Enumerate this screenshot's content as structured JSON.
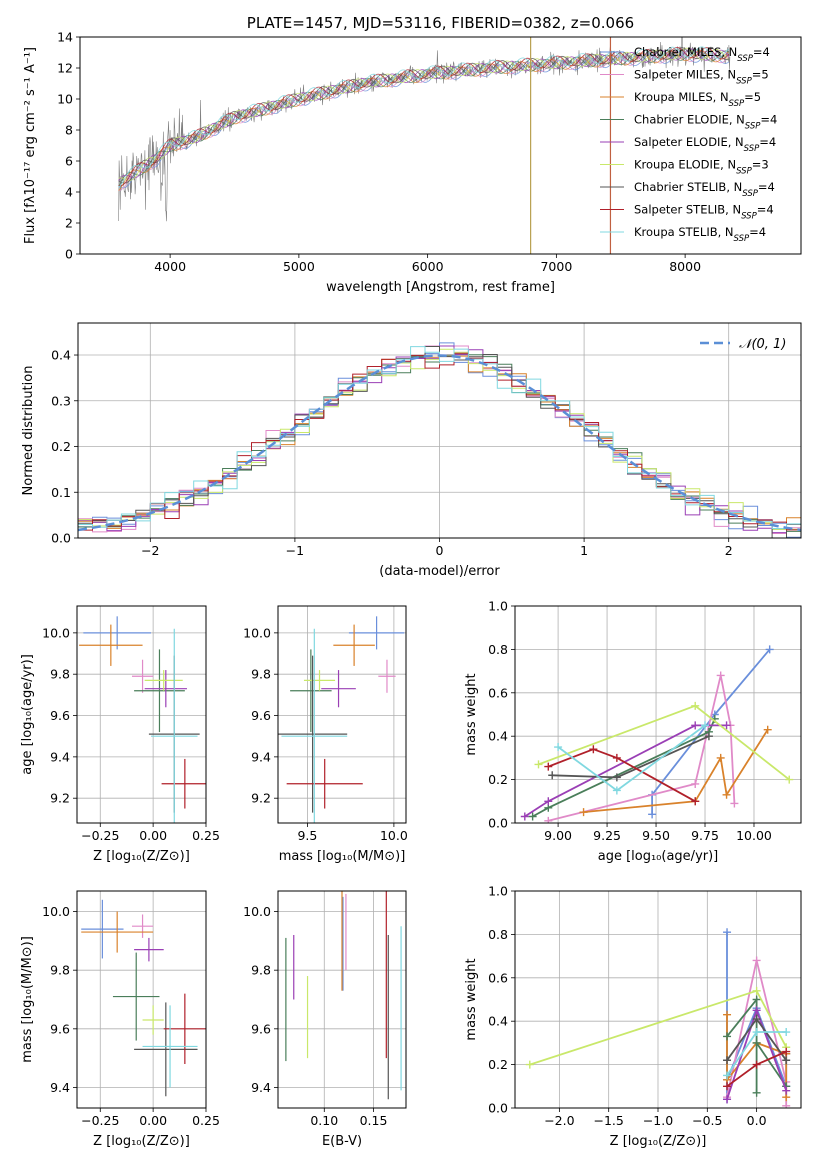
{
  "colors": {
    "c1": "#6a8fdb",
    "c2": "#e08ac8",
    "c3": "#d9822b",
    "c4": "#4a7e5a",
    "c5": "#9a3fb5",
    "c6": "#c9e86a",
    "c7": "#555555",
    "c8": "#b0202a",
    "c9": "#80d8e0",
    "grey": "#808080",
    "norm": "#5b8fd6"
  },
  "chart_data": [
    {
      "id": "spectrum",
      "type": "line",
      "title": "PLATE=1457, MJD=53116, FIBERID=0382, z=0.066",
      "xlabel": "wavelength [Angstrom, rest frame]",
      "ylabel": "Flux [fλ10⁻¹⁷ erg cm⁻² s⁻¹ A⁻¹]",
      "xlim": [
        3300,
        8900
      ],
      "ylim": [
        0,
        14
      ],
      "xticks": [
        "4000",
        "5000",
        "6000",
        "7000",
        "8000"
      ],
      "yticks": [
        "0",
        "2",
        "4",
        "6",
        "8",
        "10",
        "12",
        "14"
      ],
      "continuum": [
        [
          3600,
          4.5
        ],
        [
          3900,
          6.2
        ],
        [
          4000,
          7.0
        ],
        [
          4200,
          7.5
        ],
        [
          4500,
          8.8
        ],
        [
          5000,
          10.0
        ],
        [
          5500,
          11.0
        ],
        [
          6000,
          11.6
        ],
        [
          6500,
          12.0
        ],
        [
          7000,
          12.3
        ],
        [
          7500,
          12.6
        ],
        [
          8000,
          12.9
        ],
        [
          8300,
          12.8
        ]
      ],
      "legend": [
        {
          "model": "Chabrier MILES",
          "nssp": "4"
        },
        {
          "model": "Salpeter MILES",
          "nssp": "5"
        },
        {
          "model": "Kroupa MILES",
          "nssp": "5"
        },
        {
          "model": "Chabrier ELODIE",
          "nssp": "4"
        },
        {
          "model": "Salpeter ELODIE",
          "nssp": "4"
        },
        {
          "model": "Kroupa ELODIE",
          "nssp": "3"
        },
        {
          "model": "Chabrier STELIB",
          "nssp": "4"
        },
        {
          "model": "Salpeter STELIB",
          "nssp": "4"
        },
        {
          "model": "Kroupa STELIB",
          "nssp": "4"
        }
      ],
      "legend_placement": "top-right"
    },
    {
      "id": "residuals",
      "type": "line",
      "xlabel": "(data-model)/error",
      "ylabel": "Normed distribution",
      "xlim": [
        -2.5,
        2.5
      ],
      "ylim": [
        0,
        0.47
      ],
      "xticks": [
        "−2",
        "−1",
        "0",
        "1",
        "2"
      ],
      "yticks": [
        "0.0",
        "0.1",
        "0.2",
        "0.3",
        "0.4"
      ],
      "legend": "𝒩(0, 1)",
      "grid": true
    },
    {
      "id": "age-vs-Z",
      "type": "scatter",
      "xlabel": "Z [log₁₀(Z/Z⊙)]",
      "ylabel": "age  [log₁₀(age/yr)]",
      "xlim": [
        -0.36,
        0.25
      ],
      "ylim": [
        9.08,
        10.13
      ],
      "xticks": [
        "−0.25",
        "0.00",
        "0.25"
      ],
      "yticks": [
        "9.2",
        "9.4",
        "9.6",
        "9.8",
        "10.0"
      ],
      "points": [
        {
          "x": -0.17,
          "xerr": 0.16,
          "y": 10.0,
          "yerr": 0.08
        },
        {
          "x": -0.05,
          "xerr": 0.05,
          "y": 9.79,
          "yerr": 0.08
        },
        {
          "x": -0.2,
          "xerr": 0.15,
          "y": 9.94,
          "yerr": 0.1
        },
        {
          "x": 0.03,
          "xerr": 0.12,
          "y": 9.72,
          "yerr": 0.2
        },
        {
          "x": 0.06,
          "xerr": 0.1,
          "y": 9.73,
          "yerr": 0.09
        },
        {
          "x": 0.05,
          "xerr": 0.09,
          "y": 9.77,
          "yerr": 0.05
        },
        {
          "x": 0.1,
          "xerr": 0.12,
          "y": 9.51,
          "yerr": 0.38
        },
        {
          "x": 0.15,
          "xerr": 0.11,
          "y": 9.27,
          "yerr": 0.12
        },
        {
          "x": 0.1,
          "xerr": 0.11,
          "y": 9.5,
          "yerr": 0.52
        }
      ]
    },
    {
      "id": "age-vs-mass",
      "type": "scatter",
      "xlabel": "mass [log₁₀(M/M⊙)]",
      "ylabel": "",
      "xlim": [
        9.33,
        10.07
      ],
      "ylim": [
        9.08,
        10.13
      ],
      "xticks": [
        "9.5",
        "10.0"
      ],
      "yticks": [
        "9.2",
        "9.4",
        "9.6",
        "9.8",
        "10.0"
      ],
      "points": [
        {
          "x": 9.9,
          "xerr": 0.16,
          "y": 10.0,
          "yerr": 0.08
        },
        {
          "x": 9.96,
          "xerr": 0.05,
          "y": 9.79,
          "yerr": 0.08
        },
        {
          "x": 9.77,
          "xerr": 0.12,
          "y": 9.94,
          "yerr": 0.1
        },
        {
          "x": 9.52,
          "xerr": 0.12,
          "y": 9.72,
          "yerr": 0.2
        },
        {
          "x": 9.68,
          "xerr": 0.1,
          "y": 9.73,
          "yerr": 0.09
        },
        {
          "x": 9.57,
          "xerr": 0.09,
          "y": 9.77,
          "yerr": 0.05
        },
        {
          "x": 9.53,
          "xerr": 0.2,
          "y": 9.51,
          "yerr": 0.38
        },
        {
          "x": 9.6,
          "xerr": 0.22,
          "y": 9.27,
          "yerr": 0.12
        },
        {
          "x": 9.54,
          "xerr": 0.19,
          "y": 9.5,
          "yerr": 0.52
        }
      ]
    },
    {
      "id": "weight-vs-age",
      "type": "line",
      "xlabel": "age  [log₁₀(age/yr)]",
      "ylabel": "mass weight",
      "xlim": [
        8.78,
        10.24
      ],
      "ylim": [
        0,
        1
      ],
      "xticks": [
        "9.00",
        "9.25",
        "9.50",
        "9.75",
        "10.00"
      ],
      "yticks": [
        "0.0",
        "0.2",
        "0.4",
        "0.6",
        "0.8",
        "1.0"
      ],
      "grid": true,
      "series": [
        {
          "x": [
            9.48,
            9.48,
            9.8,
            10.08
          ],
          "y": [
            0.04,
            0.13,
            0.5,
            0.8
          ]
        },
        {
          "x": [
            8.95,
            9.7,
            9.83,
            9.88,
            9.9
          ],
          "y": [
            0.01,
            0.18,
            0.68,
            0.45,
            0.09
          ]
        },
        {
          "x": [
            9.13,
            9.7,
            9.83,
            9.86,
            10.07
          ],
          "y": [
            0.05,
            0.1,
            0.3,
            0.13,
            0.43
          ]
        },
        {
          "x": [
            8.87,
            8.95,
            9.77,
            9.8
          ],
          "y": [
            0.03,
            0.07,
            0.42,
            0.48
          ]
        },
        {
          "x": [
            8.83,
            8.95,
            9.7,
            9.86
          ],
          "y": [
            0.03,
            0.1,
            0.45,
            0.45
          ]
        },
        {
          "x": [
            8.9,
            9.7,
            10.18
          ],
          "y": [
            0.27,
            0.54,
            0.2
          ]
        },
        {
          "x": [
            8.97,
            9.3,
            9.77
          ],
          "y": [
            0.22,
            0.21,
            0.4
          ]
        },
        {
          "x": [
            8.95,
            9.18,
            9.3,
            9.7
          ],
          "y": [
            0.26,
            0.34,
            0.3,
            0.1
          ]
        },
        {
          "x": [
            9.0,
            9.3,
            9.75
          ],
          "y": [
            0.35,
            0.15,
            0.45
          ]
        }
      ]
    },
    {
      "id": "mass-vs-Z",
      "type": "scatter",
      "xlabel": "Z [log₁₀(Z/Z⊙)]",
      "ylabel": "mass [log₁₀(M/M⊙)]",
      "xlim": [
        -0.36,
        0.25
      ],
      "ylim": [
        9.33,
        10.07
      ],
      "xticks": [
        "−0.25",
        "0.00",
        "0.25"
      ],
      "yticks": [
        "9.4",
        "9.6",
        "9.8",
        "10.0"
      ],
      "points": [
        {
          "x": -0.24,
          "xerr": 0.1,
          "y": 9.94,
          "yerr": 0.1
        },
        {
          "x": -0.05,
          "xerr": 0.05,
          "y": 9.95,
          "yerr": 0.04
        },
        {
          "x": -0.17,
          "xerr": 0.17,
          "y": 9.93,
          "yerr": 0.07
        },
        {
          "x": -0.08,
          "xerr": 0.11,
          "y": 9.71,
          "yerr": 0.15
        },
        {
          "x": -0.02,
          "xerr": 0.07,
          "y": 9.87,
          "yerr": 0.04
        },
        {
          "x": 0.0,
          "xerr": 0.05,
          "y": 9.63,
          "yerr": 0.05
        },
        {
          "x": 0.06,
          "xerr": 0.15,
          "y": 9.53,
          "yerr": 0.16
        },
        {
          "x": 0.15,
          "xerr": 0.1,
          "y": 9.6,
          "yerr": 0.12
        },
        {
          "x": 0.08,
          "xerr": 0.13,
          "y": 9.54,
          "yerr": 0.14
        }
      ]
    },
    {
      "id": "mass-vs-ebv",
      "type": "scatter",
      "xlabel": "E(B-V)",
      "ylabel": "",
      "xlim": [
        0.053,
        0.183
      ],
      "ylim": [
        9.33,
        10.07
      ],
      "xticks": [
        "0.10",
        "0.15"
      ],
      "yticks": [
        "9.4",
        "9.6",
        "9.8",
        "10.0"
      ],
      "points": [
        {
          "x": 0.119,
          "y": 9.89,
          "yerr": 0.16
        },
        {
          "x": 0.122,
          "y": 9.93,
          "yerr": 0.13
        },
        {
          "x": 0.118,
          "y": 9.91,
          "yerr": 0.18
        },
        {
          "x": 0.061,
          "y": 9.7,
          "yerr": 0.21
        },
        {
          "x": 0.069,
          "y": 9.81,
          "yerr": 0.11
        },
        {
          "x": 0.083,
          "y": 9.64,
          "yerr": 0.14
        },
        {
          "x": 0.165,
          "y": 9.64,
          "yerr": 0.28
        },
        {
          "x": 0.163,
          "y": 9.79,
          "yerr": 0.29
        },
        {
          "x": 0.178,
          "y": 9.67,
          "yerr": 0.28
        }
      ]
    },
    {
      "id": "weight-vs-Z",
      "type": "line",
      "xlabel": "Z [log₁₀(Z/Z⊙)]",
      "ylabel": "mass weight",
      "xlim": [
        -2.45,
        0.45
      ],
      "ylim": [
        0,
        1
      ],
      "xticks": [
        "−2.0",
        "−1.5",
        "−1.0",
        "−0.5",
        "0.0"
      ],
      "yticks": [
        "0.0",
        "0.2",
        "0.4",
        "0.6",
        "0.8",
        "1.0"
      ],
      "grid": true,
      "series": [
        {
          "x": [
            -0.3,
            -0.3,
            -0.3,
            0.0,
            0.3,
            0.3
          ],
          "y": [
            0.81,
            0.04,
            0.13,
            0.46,
            0.1,
            0.25
          ]
        },
        {
          "x": [
            -0.3,
            0.0,
            0.3,
            0.3
          ],
          "y": [
            0.05,
            0.68,
            0.12,
            0.01
          ]
        },
        {
          "x": [
            -0.3,
            -0.3,
            0.0,
            0.3,
            0.3
          ],
          "y": [
            0.43,
            0.13,
            0.3,
            0.25,
            0.05
          ]
        },
        {
          "x": [
            -0.3,
            0.0,
            0.0,
            0.0,
            0.3
          ],
          "y": [
            0.33,
            0.5,
            0.07,
            0.3,
            0.1
          ]
        },
        {
          "x": [
            -0.3,
            0.0,
            0.3
          ],
          "y": [
            0.04,
            0.45,
            0.08
          ]
        },
        {
          "x": [
            -2.3,
            0.0,
            0.3
          ],
          "y": [
            0.2,
            0.54,
            0.28
          ]
        },
        {
          "x": [
            -0.3,
            0.0,
            0.3
          ],
          "y": [
            0.22,
            0.41,
            0.22
          ]
        },
        {
          "x": [
            -0.3,
            0.0,
            0.3
          ],
          "y": [
            0.1,
            0.2,
            0.26
          ]
        },
        {
          "x": [
            -0.3,
            0.0,
            0.3
          ],
          "y": [
            0.15,
            0.35,
            0.35
          ]
        }
      ]
    }
  ]
}
